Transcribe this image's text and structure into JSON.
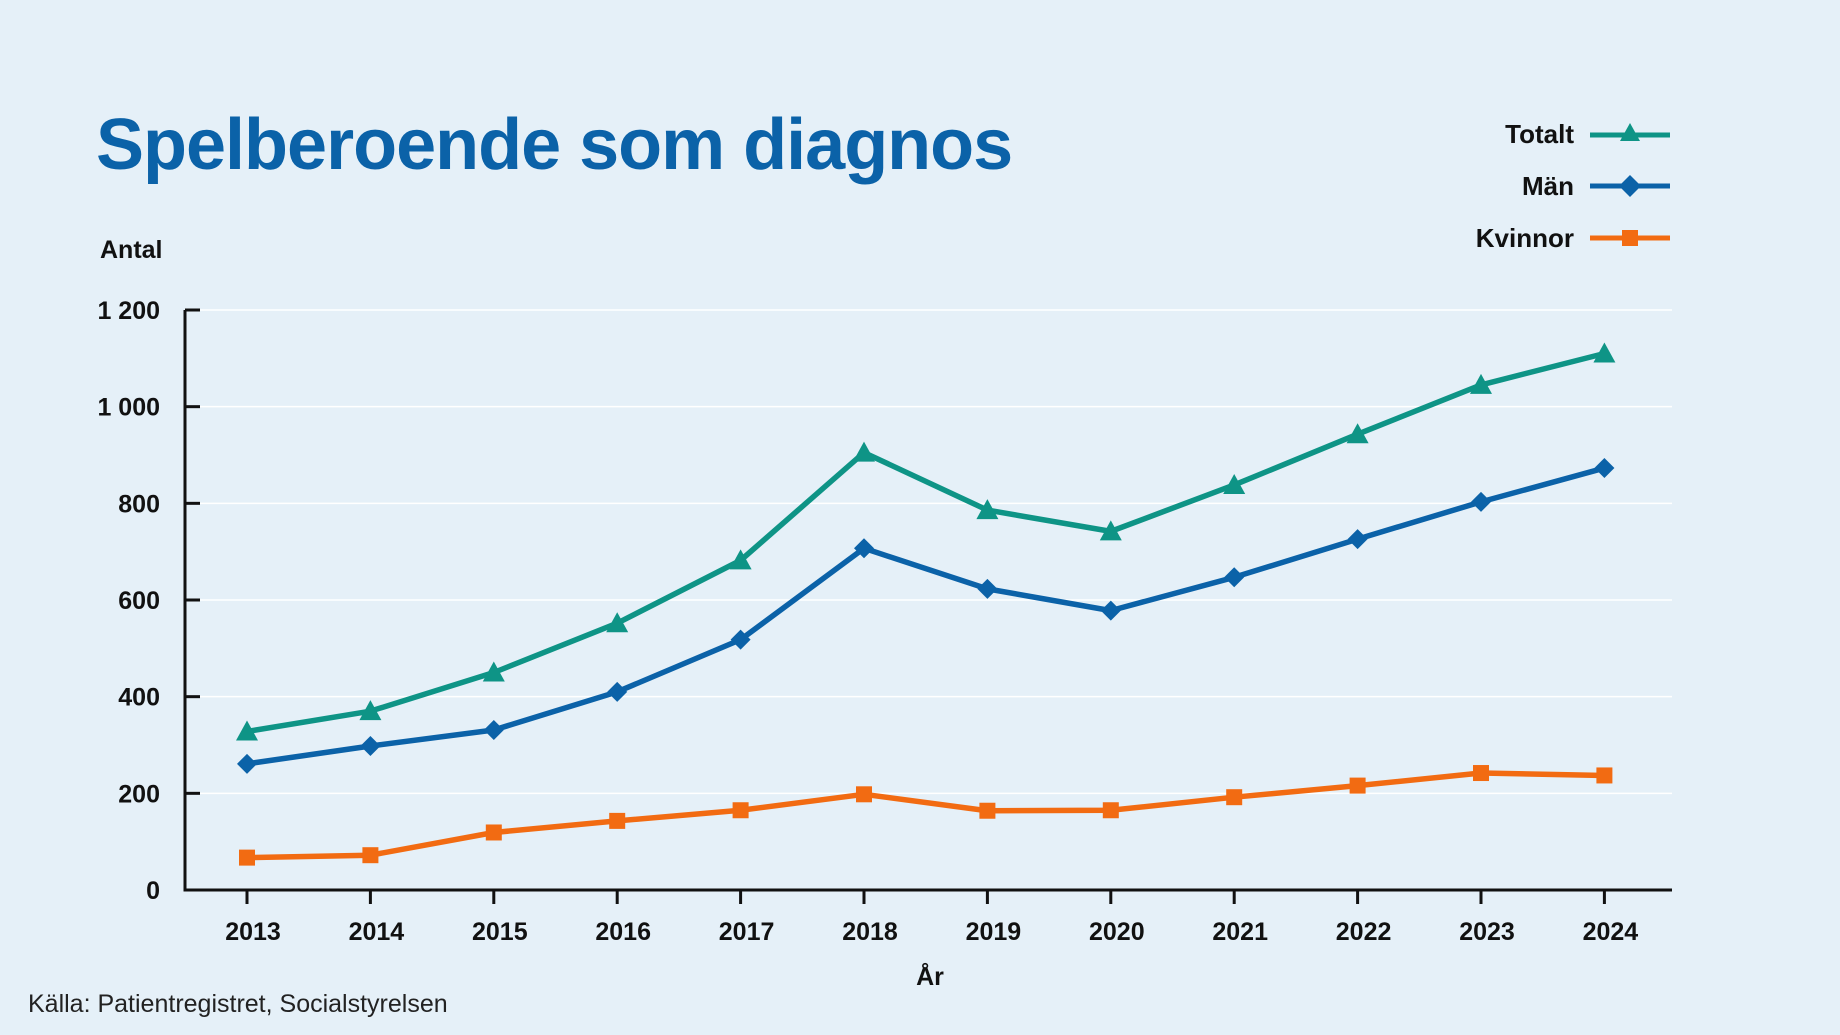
{
  "chart_data": {
    "type": "line",
    "title": "Spelberoende som diagnos",
    "ylabel": "Antal",
    "xlabel": "År",
    "x": [
      "2013",
      "2014",
      "2015",
      "2016",
      "2017",
      "2018",
      "2019",
      "2020",
      "2021",
      "2022",
      "2023",
      "2024"
    ],
    "ylim": [
      0,
      1200
    ],
    "yticks": [
      0,
      200,
      400,
      600,
      800,
      1000,
      1200
    ],
    "ytick_labels": [
      "0",
      "200",
      "400",
      "600",
      "800",
      "1 000",
      "1 200"
    ],
    "grid": true,
    "legend_position": "top-right",
    "series": [
      {
        "name": "Totalt",
        "marker": "triangle",
        "color": "#0e9486",
        "values": [
          328,
          370,
          450,
          552,
          682,
          905,
          786,
          742,
          838,
          943,
          1045,
          1110
        ]
      },
      {
        "name": "Män",
        "marker": "diamond",
        "color": "#0b62a8",
        "values": [
          261,
          298,
          331,
          410,
          518,
          707,
          623,
          578,
          647,
          726,
          803,
          873
        ]
      },
      {
        "name": "Kvinnor",
        "marker": "square",
        "color": "#f26b12",
        "values": [
          67,
          72,
          119,
          143,
          165,
          198,
          164,
          165,
          192,
          216,
          242,
          237
        ]
      }
    ]
  },
  "source": "Källa: Patientregistret, Socialstyrelsen"
}
